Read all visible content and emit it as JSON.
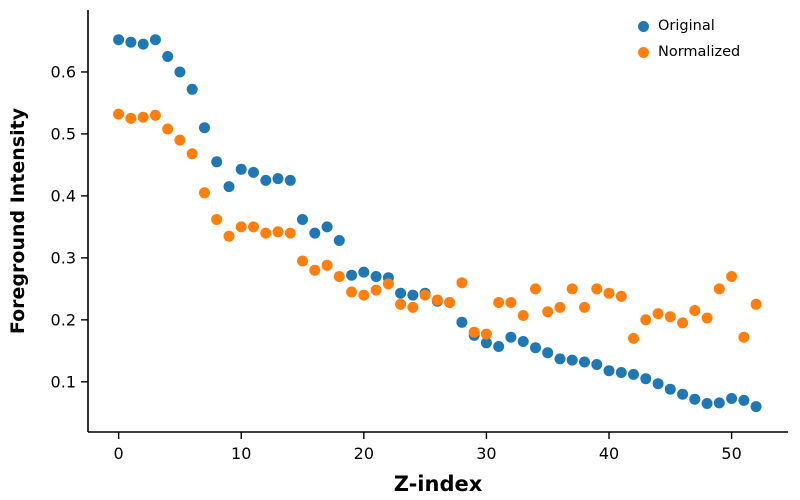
{
  "chart_data": {
    "type": "scatter",
    "title": "",
    "xlabel": "Z-index",
    "ylabel": "Foreground Intensity",
    "grid": false,
    "legend_position": "upper right",
    "xlim": [
      -2.5,
      54.6
    ],
    "ylim": [
      0.019,
      0.7
    ],
    "xticks": [
      0,
      10,
      20,
      30,
      40,
      50
    ],
    "yticks": [
      0.1,
      0.2,
      0.3,
      0.4,
      0.5,
      0.6
    ],
    "x": [
      0,
      1,
      2,
      3,
      4,
      5,
      6,
      7,
      8,
      9,
      10,
      11,
      12,
      13,
      14,
      15,
      16,
      17,
      18,
      19,
      20,
      21,
      22,
      23,
      24,
      25,
      26,
      27,
      28,
      29,
      30,
      31,
      32,
      33,
      34,
      35,
      36,
      37,
      38,
      39,
      40,
      41,
      42,
      43,
      44,
      45,
      46,
      47,
      48,
      49,
      50,
      51,
      52
    ],
    "series": [
      {
        "name": "Original",
        "color": "#1f77b4",
        "values": [
          0.652,
          0.648,
          0.645,
          0.652,
          0.625,
          0.6,
          0.572,
          0.51,
          0.455,
          0.415,
          0.443,
          0.438,
          0.425,
          0.428,
          0.425,
          0.362,
          0.34,
          0.35,
          0.328,
          0.272,
          0.277,
          0.27,
          0.268,
          0.243,
          0.24,
          0.243,
          0.23,
          0.228,
          0.196,
          0.175,
          0.163,
          0.157,
          0.172,
          0.165,
          0.155,
          0.147,
          0.137,
          0.135,
          0.132,
          0.128,
          0.118,
          0.115,
          0.112,
          0.105,
          0.097,
          0.088,
          0.08,
          0.072,
          0.065,
          0.066,
          0.073,
          0.07,
          0.06
        ]
      },
      {
        "name": "Normalized",
        "color": "#ff7f0e",
        "values": [
          0.532,
          0.525,
          0.527,
          0.53,
          0.508,
          0.49,
          0.468,
          0.405,
          0.362,
          0.335,
          0.35,
          0.35,
          0.34,
          0.342,
          0.34,
          0.295,
          0.28,
          0.288,
          0.27,
          0.245,
          0.24,
          0.248,
          0.258,
          0.225,
          0.22,
          0.24,
          0.232,
          0.228,
          0.26,
          0.18,
          0.177,
          0.228,
          0.228,
          0.207,
          0.25,
          0.213,
          0.22,
          0.25,
          0.22,
          0.25,
          0.243,
          0.238,
          0.17,
          0.2,
          0.21,
          0.205,
          0.195,
          0.215,
          0.203,
          0.25,
          0.27,
          0.172,
          0.225
        ]
      }
    ]
  }
}
